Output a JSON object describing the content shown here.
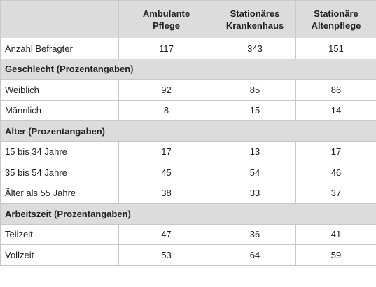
{
  "table": {
    "headers": [
      "",
      "Ambulante\nPflege",
      "Stationäres\nKrankenhaus",
      "Stationäre\nAltenpflege"
    ],
    "count_row": {
      "label": "Anzahl Befragter",
      "values": [
        "117",
        "343",
        "151"
      ]
    },
    "sections": [
      {
        "title": "Geschlecht (Prozentangaben)",
        "rows": [
          {
            "label": "Weiblich",
            "values": [
              "92",
              "85",
              "86"
            ]
          },
          {
            "label": "Männlich",
            "values": [
              "8",
              "15",
              "14"
            ]
          }
        ]
      },
      {
        "title": "Alter (Prozentangaben)",
        "rows": [
          {
            "label": "15 bis 34 Jahre",
            "values": [
              "17",
              "13",
              "17"
            ]
          },
          {
            "label": "35 bis 54 Jahre",
            "values": [
              "45",
              "54",
              "46"
            ]
          },
          {
            "label": "Älter als 55 Jahre",
            "values": [
              "38",
              "33",
              "37"
            ]
          }
        ]
      },
      {
        "title": "Arbeitszeit (Prozentangaben)",
        "rows": [
          {
            "label": "Teilzeit",
            "values": [
              "47",
              "36",
              "41"
            ]
          },
          {
            "label": "Vollzeit",
            "values": [
              "53",
              "64",
              "59"
            ]
          }
        ]
      }
    ],
    "colors": {
      "header_bg": "#dcdcdc",
      "border": "#c8c8c8"
    }
  }
}
